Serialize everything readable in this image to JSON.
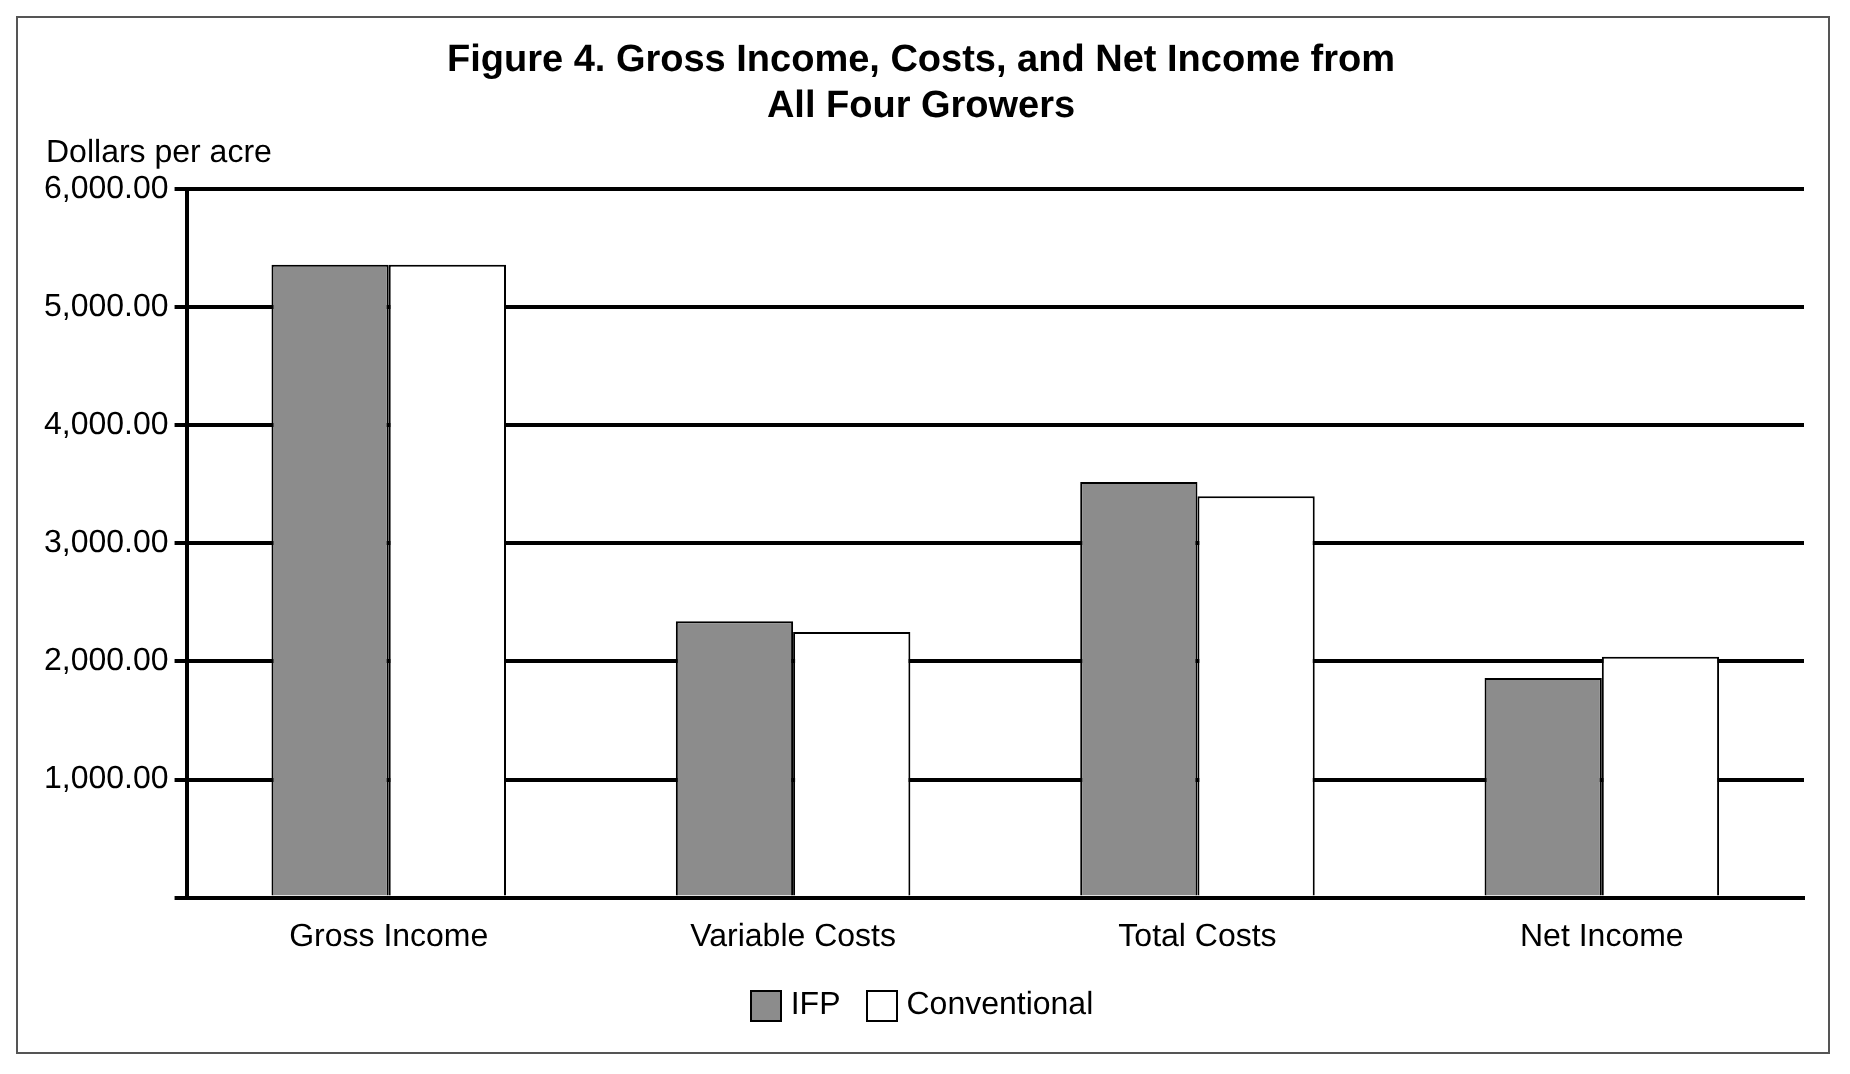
{
  "chart_data": {
    "type": "bar",
    "title": "Figure 4. Gross Income, Costs, and Net Income from\nAll Four Growers",
    "ylabel": "Dollars per acre",
    "categories": [
      "Gross Income",
      "Variable Costs",
      "Total Costs",
      "Net Income"
    ],
    "series": [
      {
        "name": "IFP",
        "color": "#8c8c8c",
        "values": [
          5360,
          2340,
          3520,
          1860
        ]
      },
      {
        "name": "Conventional",
        "color": "#ffffff",
        "values": [
          5360,
          2250,
          3400,
          2040
        ]
      }
    ],
    "ylim": [
      0,
      6000
    ],
    "yticks": [
      {
        "value": 0,
        "label": null
      },
      {
        "value": 1000,
        "label": "1,000.00"
      },
      {
        "value": 2000,
        "label": "2,000.00"
      },
      {
        "value": 3000,
        "label": "3,000.00"
      },
      {
        "value": 4000,
        "label": "4,000.00"
      },
      {
        "value": 5000,
        "label": "5,000.00"
      },
      {
        "value": 6000,
        "label": "6,000.00"
      }
    ],
    "grid": "y",
    "legend": "bottom"
  }
}
